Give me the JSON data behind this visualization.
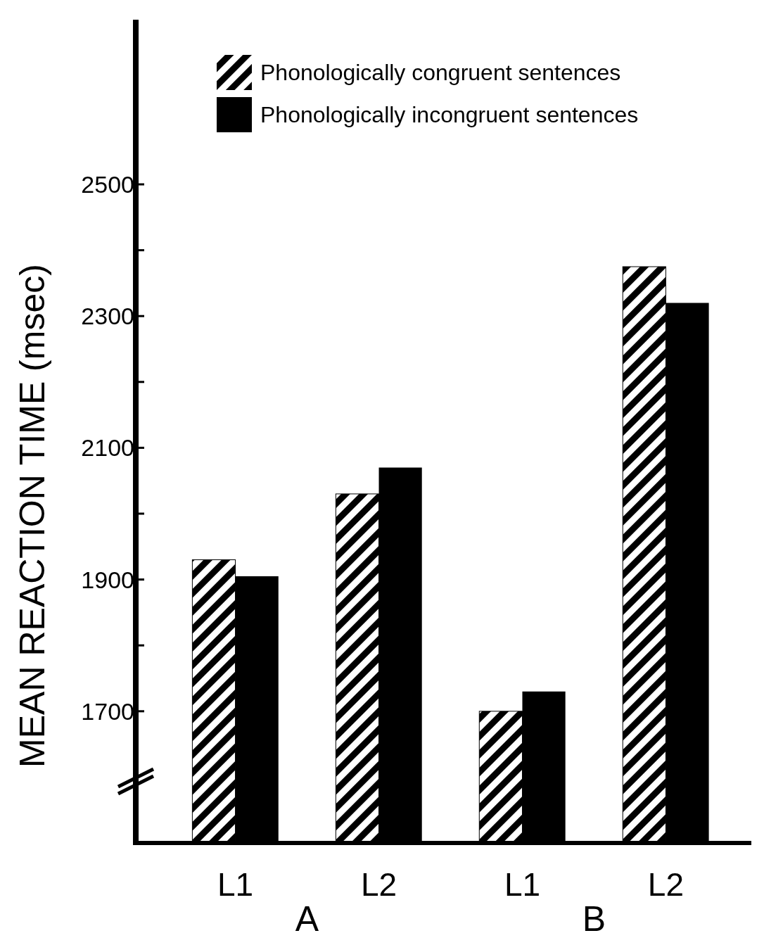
{
  "chart_data": {
    "type": "bar",
    "ylabel": "MEAN REACTION TIME (msec)",
    "categories": [
      "L1",
      "L2",
      "L1",
      "L2"
    ],
    "series": [
      {
        "name": "Phonologically congruent sentences",
        "color": "#000000",
        "values": [
          1930,
          2030,
          1700,
          2375
        ]
      },
      {
        "name": "Phonologically incongruent sentences",
        "color": "#000000",
        "values": [
          1905,
          2070,
          1730,
          2320
        ]
      }
    ],
    "annotations": [
      "A",
      "B"
    ],
    "ylim": [
      1500,
      2750
    ],
    "yticks": [
      1700,
      {
        "value": 1800,
        "label": null
      },
      1900,
      {
        "value": 2000,
        "label": null
      },
      2100,
      {
        "value": 2200,
        "label": null
      },
      2300,
      {
        "value": 2400,
        "label": null
      },
      2500
    ],
    "grid": false,
    "legend": "top right"
  }
}
